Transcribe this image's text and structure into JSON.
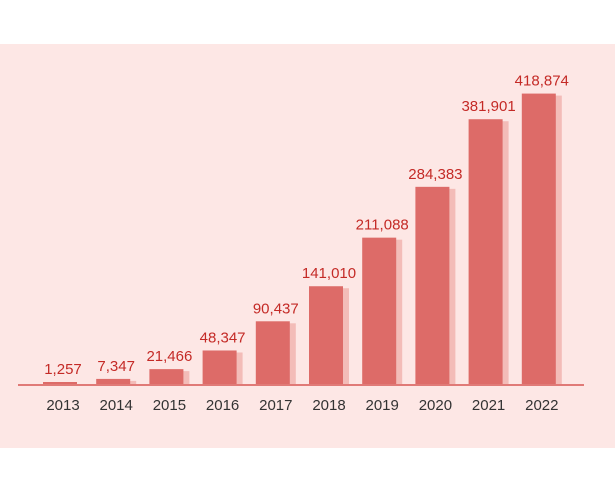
{
  "chart_data": {
    "type": "bar",
    "categories": [
      "2013",
      "2014",
      "2015",
      "2016",
      "2017",
      "2018",
      "2019",
      "2020",
      "2021",
      "2022"
    ],
    "values": [
      1257,
      7347,
      21466,
      48347,
      90437,
      141010,
      211088,
      284383,
      381901,
      418874
    ],
    "value_labels": [
      "1,257",
      "7,347",
      "21,466",
      "48,347",
      "90,437",
      "141,010",
      "211,088",
      "284,383",
      "381,901",
      "418,874"
    ],
    "ylim": [
      0,
      450000
    ],
    "grid": false,
    "legend": "none",
    "colors": {
      "background": "#fde7e5",
      "bar": "#dd6b68",
      "bar_shadow": "#f3bcb8",
      "axis": "#e07a77",
      "value_label": "#c42a26",
      "tick_label": "#333333"
    }
  }
}
